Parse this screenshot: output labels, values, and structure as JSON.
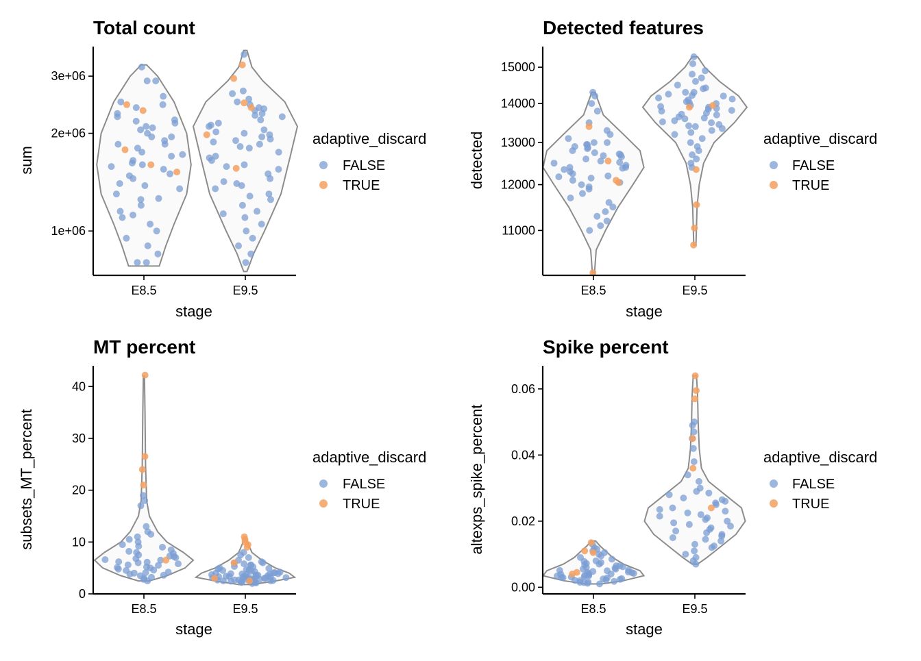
{
  "colors": {
    "false": "#7B9ED3",
    "true": "#F5A060",
    "violin_stroke": "#8c8c8c",
    "violin_fill": "#fafafa"
  },
  "legend": {
    "title": "adaptive_discard",
    "labels": [
      "FALSE",
      "TRUE"
    ]
  },
  "chart_data": [
    {
      "type": "scatter",
      "title": "Total count",
      "xlabel": "stage",
      "ylabel": "sum",
      "categories": [
        "E8.5",
        "E9.5"
      ],
      "y_scale": "log",
      "ylim": [
        730000,
        3700000
      ],
      "yticks": [
        1000000,
        2000000,
        3000000
      ],
      "ytick_labels": [
        "1e+06",
        "2e+06",
        "3e+06"
      ],
      "violins": [
        {
          "profile": [
            [
              780000,
              0.28
            ],
            [
              900000,
              0.4
            ],
            [
              1050000,
              0.55
            ],
            [
              1300000,
              0.78
            ],
            [
              1600000,
              0.86
            ],
            [
              2000000,
              0.78
            ],
            [
              2500000,
              0.55
            ],
            [
              3000000,
              0.25
            ],
            [
              3250000,
              0.05
            ]
          ]
        },
        {
          "profile": [
            [
              750000,
              0.03
            ],
            [
              850000,
              0.15
            ],
            [
              1000000,
              0.35
            ],
            [
              1300000,
              0.65
            ],
            [
              1700000,
              0.82
            ],
            [
              2100000,
              0.95
            ],
            [
              2500000,
              0.72
            ],
            [
              2900000,
              0.32
            ],
            [
              3200000,
              0.12
            ],
            [
              3600000,
              0.03
            ]
          ]
        }
      ],
      "points": [
        {
          "name": "E8.5",
          "false": [
            3200000,
            2900000,
            2900000,
            2600000,
            2500000,
            2450000,
            2400000,
            2300000,
            2250000,
            2200000,
            2150000,
            2100000,
            2050000,
            2000000,
            1950000,
            1900000,
            1850000,
            1800000,
            1750000,
            1700000,
            1650000,
            1600000,
            1580000,
            1550000,
            1500000,
            1450000,
            1400000,
            1350000,
            1300000,
            1250000,
            1200000,
            1150000,
            1100000,
            1050000,
            1000000,
            950000,
            900000,
            850000,
            800000,
            800000,
            1620000,
            1480000,
            1380000,
            1260000,
            1120000,
            1850000,
            1950000,
            2080000,
            2180000,
            1720000
          ],
          "true": [
            2350000,
            2450000,
            1780000,
            1520000,
            1600000
          ]
        },
        {
          "name": "E9.5",
          "false": [
            3500000,
            2700000,
            2650000,
            2550000,
            2500000,
            2450000,
            2400000,
            2350000,
            2300000,
            2250000,
            2200000,
            2150000,
            2100000,
            2050000,
            2000000,
            1950000,
            1900000,
            1850000,
            1800000,
            1750000,
            1700000,
            1650000,
            1600000,
            1550000,
            1500000,
            1450000,
            1400000,
            1350000,
            1300000,
            1250000,
            1200000,
            1150000,
            1100000,
            1050000,
            1000000,
            950000,
            900000,
            850000,
            800000,
            2120000,
            1920000,
            1820000,
            1680000,
            1420000,
            1280000,
            2020000,
            2270000,
            1580000,
            1380000,
            1130000,
            2380000,
            1980000,
            1880000
          ],
          "true": [
            3250000,
            2950000,
            2480000,
            2400000,
            1980000,
            1560000
          ]
        }
      ]
    },
    {
      "type": "scatter",
      "title": "Detected features",
      "xlabel": "stage",
      "ylabel": "detected",
      "categories": [
        "E8.5",
        "E9.5"
      ],
      "y_scale": "log",
      "ylim": [
        10100,
        15600
      ],
      "yticks": [
        11000,
        12000,
        13000,
        14000,
        15000
      ],
      "ytick_labels": [
        "11000",
        "12000",
        "13000",
        "14000",
        "15000"
      ],
      "violins": [
        {
          "profile": [
            [
              10150,
              0.02
            ],
            [
              10600,
              0.05
            ],
            [
              11000,
              0.22
            ],
            [
              11500,
              0.45
            ],
            [
              12000,
              0.72
            ],
            [
              12400,
              0.92
            ],
            [
              12800,
              0.85
            ],
            [
              13200,
              0.55
            ],
            [
              13700,
              0.18
            ],
            [
              14100,
              0.08
            ],
            [
              14300,
              0.03
            ]
          ]
        },
        {
          "profile": [
            [
              10700,
              0.02
            ],
            [
              11500,
              0.04
            ],
            [
              12000,
              0.08
            ],
            [
              12500,
              0.16
            ],
            [
              13000,
              0.35
            ],
            [
              13500,
              0.72
            ],
            [
              13900,
              0.95
            ],
            [
              14200,
              0.8
            ],
            [
              14600,
              0.45
            ],
            [
              15000,
              0.18
            ],
            [
              15300,
              0.05
            ]
          ]
        }
      ],
      "points": [
        {
          "name": "E8.5",
          "false": [
            14300,
            14200,
            14000,
            13800,
            13500,
            13300,
            13200,
            13100,
            13000,
            13000,
            12950,
            12900,
            12850,
            12800,
            12750,
            12700,
            12650,
            12600,
            12550,
            12500,
            12450,
            12400,
            12400,
            12350,
            12300,
            12250,
            12200,
            12150,
            12100,
            12000,
            11950,
            11900,
            11800,
            11700,
            11600,
            11500,
            11400,
            11300,
            11200,
            11100,
            11000,
            12380,
            12520,
            12680,
            12880,
            12180,
            12050,
            12720,
            12950
          ],
          "true": [
            13400,
            12550,
            12100,
            12050,
            10150
          ]
        },
        {
          "name": "E9.5",
          "false": [
            15300,
            15100,
            14900,
            14800,
            14700,
            14600,
            14500,
            14400,
            14300,
            14300,
            14250,
            14200,
            14150,
            14100,
            14050,
            14000,
            13950,
            13900,
            13850,
            13800,
            13750,
            13700,
            13650,
            13600,
            13550,
            13500,
            13450,
            13400,
            13350,
            13300,
            13250,
            13200,
            13100,
            13000,
            12900,
            12800,
            12700,
            12600,
            12500,
            12400,
            13870,
            14120,
            13720,
            13920,
            14420,
            13520,
            13620,
            14020,
            14220,
            13420,
            13820
          ],
          "true": [
            13900,
            13950,
            12350,
            11550,
            11050,
            10700
          ]
        }
      ]
    },
    {
      "type": "scatter",
      "title": "MT percent",
      "xlabel": "stage",
      "ylabel": "subsets_MT_percent",
      "categories": [
        "E8.5",
        "E9.5"
      ],
      "y_scale": "linear",
      "ylim": [
        0,
        44
      ],
      "yticks": [
        0,
        10,
        20,
        30,
        40
      ],
      "ytick_labels": [
        "0",
        "10",
        "20",
        "30",
        "40"
      ],
      "violins": [
        {
          "profile": [
            [
              2.5,
              0.1
            ],
            [
              3.5,
              0.42
            ],
            [
              5,
              0.75
            ],
            [
              6.5,
              0.9
            ],
            [
              8,
              0.72
            ],
            [
              10,
              0.42
            ],
            [
              12,
              0.25
            ],
            [
              15,
              0.1
            ],
            [
              18,
              0.05
            ],
            [
              25,
              0.03
            ],
            [
              35,
              0.02
            ],
            [
              42,
              0.01
            ]
          ]
        },
        {
          "profile": [
            [
              1.8,
              0.12
            ],
            [
              2.5,
              0.55
            ],
            [
              3.2,
              0.9
            ],
            [
              4,
              0.8
            ],
            [
              5,
              0.55
            ],
            [
              6.5,
              0.3
            ],
            [
              8,
              0.12
            ],
            [
              10,
              0.04
            ],
            [
              11,
              0.02
            ]
          ]
        }
      ],
      "points": [
        {
          "name": "E8.5",
          "false": [
            19,
            18,
            17,
            13,
            12,
            11.5,
            11,
            10.5,
            10,
            9.5,
            9,
            8.5,
            8,
            7.8,
            7.5,
            7.2,
            7,
            6.8,
            6.5,
            6.2,
            6,
            5.8,
            5.5,
            5.2,
            5,
            4.8,
            4.5,
            4.2,
            4,
            3.8,
            3.5,
            3.2,
            3,
            2.8,
            2.5,
            7.3,
            6.6,
            5.6,
            4.6,
            3.6,
            8.2,
            9.2,
            5.1,
            4.1,
            6.1
          ],
          "true": [
            42.2,
            26.5,
            24,
            21,
            6.5
          ]
        },
        {
          "name": "E9.5",
          "false": [
            8,
            7.5,
            7,
            6.5,
            6,
            5.8,
            5.5,
            5.2,
            5,
            4.8,
            4.6,
            4.4,
            4.2,
            4,
            3.9,
            3.8,
            3.7,
            3.6,
            3.5,
            3.4,
            3.3,
            3.2,
            3.1,
            3,
            2.9,
            2.8,
            2.7,
            2.6,
            2.5,
            2.4,
            2.3,
            2.2,
            2.1,
            2,
            4.3,
            3.3,
            2.6,
            5.3,
            3.9,
            3.1,
            2.8,
            4.7,
            3.6,
            2.5,
            3.2,
            4.1,
            5.6,
            2.9,
            3.4,
            2.2,
            4.5,
            3.7,
            2.7,
            6.2,
            3.05,
            2.45,
            3.85,
            4.9,
            2.35,
            3.15,
            5.9,
            3.55,
            2.65,
            4.05,
            3.35,
            2.75
          ],
          "true": [
            11,
            10.5,
            10,
            9.5,
            9,
            6,
            3,
            2.5
          ]
        }
      ]
    },
    {
      "type": "scatter",
      "title": "Spike percent",
      "xlabel": "stage",
      "ylabel": "altexps_spike_percent",
      "categories": [
        "E8.5",
        "E9.5"
      ],
      "y_scale": "linear",
      "ylim": [
        -0.002,
        0.067
      ],
      "yticks": [
        0,
        0.02,
        0.04,
        0.06
      ],
      "ytick_labels": [
        "0.00",
        "0.02",
        "0.04",
        "0.06"
      ],
      "violins": [
        {
          "profile": [
            [
              0.001,
              0.15
            ],
            [
              0.002,
              0.55
            ],
            [
              0.0035,
              0.92
            ],
            [
              0.005,
              0.85
            ],
            [
              0.007,
              0.55
            ],
            [
              0.009,
              0.35
            ],
            [
              0.011,
              0.22
            ],
            [
              0.0125,
              0.12
            ],
            [
              0.014,
              0.04
            ]
          ]
        },
        {
          "profile": [
            [
              0.007,
              0.05
            ],
            [
              0.009,
              0.22
            ],
            [
              0.012,
              0.45
            ],
            [
              0.016,
              0.75
            ],
            [
              0.02,
              0.92
            ],
            [
              0.024,
              0.85
            ],
            [
              0.028,
              0.55
            ],
            [
              0.032,
              0.25
            ],
            [
              0.036,
              0.12
            ],
            [
              0.042,
              0.08
            ],
            [
              0.05,
              0.06
            ],
            [
              0.058,
              0.05
            ],
            [
              0.064,
              0.03
            ]
          ]
        }
      ],
      "points": [
        {
          "name": "E8.5",
          "false": [
            0.013,
            0.012,
            0.0115,
            0.011,
            0.0105,
            0.01,
            0.0095,
            0.009,
            0.0085,
            0.008,
            0.0078,
            0.0075,
            0.0072,
            0.007,
            0.0068,
            0.0065,
            0.0062,
            0.006,
            0.0058,
            0.0055,
            0.0052,
            0.005,
            0.0048,
            0.0046,
            0.0044,
            0.0042,
            0.004,
            0.0038,
            0.0036,
            0.0034,
            0.0032,
            0.003,
            0.0028,
            0.0026,
            0.0024,
            0.0022,
            0.002,
            0.0018,
            0.0016,
            0.0014,
            0.0012,
            0.001,
            0.0045,
            0.0035,
            0.0025,
            0.0055,
            0.0065,
            0.0031,
            0.0041,
            0.0021,
            0.0051,
            0.0015,
            0.0029,
            0.0039
          ],
          "true": [
            0.0135,
            0.011,
            0.0105,
            0.0045,
            0.004
          ]
        },
        {
          "name": "E9.5",
          "false": [
            0.05,
            0.049,
            0.047,
            0.045,
            0.042,
            0.038,
            0.034,
            0.032,
            0.03,
            0.029,
            0.028,
            0.027,
            0.026,
            0.025,
            0.024,
            0.023,
            0.022,
            0.021,
            0.02,
            0.019,
            0.018,
            0.017,
            0.016,
            0.015,
            0.014,
            0.013,
            0.012,
            0.011,
            0.01,
            0.009,
            0.008,
            0.007,
            0.0215,
            0.0195,
            0.0175,
            0.0225,
            0.0255,
            0.0185,
            0.0205,
            0.0165,
            0.0145,
            0.0235,
            0.0265,
            0.0155,
            0.0125,
            0.0285
          ],
          "true": [
            0.064,
            0.0595,
            0.057,
            0.045,
            0.036,
            0.024
          ]
        }
      ]
    }
  ]
}
